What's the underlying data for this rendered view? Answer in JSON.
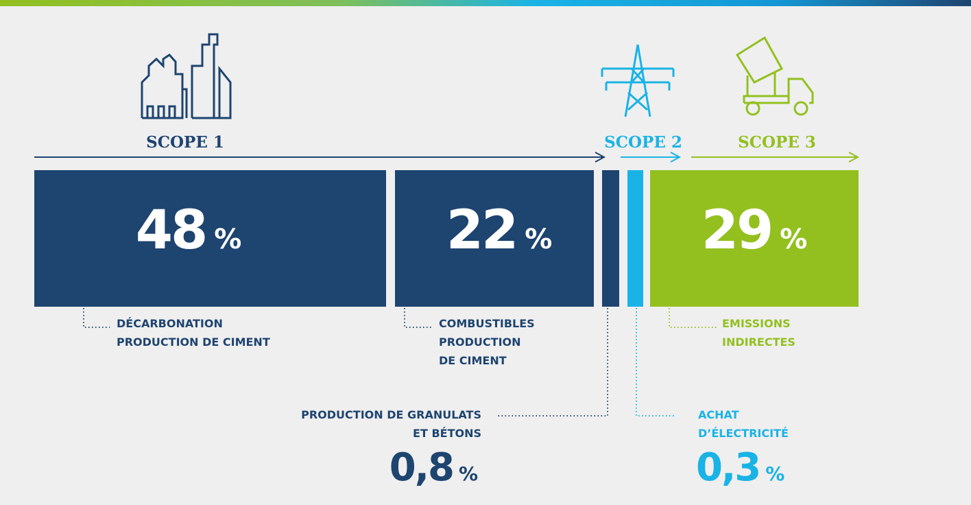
{
  "scopes": [
    {
      "label": "SCOPE 1"
    },
    {
      "label": "SCOPE 2"
    },
    {
      "label": "SCOPE 3"
    }
  ],
  "segments": [
    {
      "value": "48",
      "unit": "%",
      "label": [
        "DÉCARBONATION",
        "PRODUCTION DE CIMENT"
      ]
    },
    {
      "value": "22",
      "unit": "%",
      "label": [
        "COMBUSTIBLES",
        "PRODUCTION",
        "DE CIMENT"
      ]
    },
    {
      "value": "0,8",
      "unit": "%",
      "label": [
        "PRODUCTION DE GRANULATS",
        "ET BÉTONS"
      ]
    },
    {
      "value": "0,3",
      "unit": "%",
      "label": [
        "ACHAT",
        "D’ÉLECTRICITÉ"
      ]
    },
    {
      "value": "29",
      "unit": "%",
      "label": [
        "EMISSIONS",
        "INDIRECTES"
      ]
    }
  ]
}
